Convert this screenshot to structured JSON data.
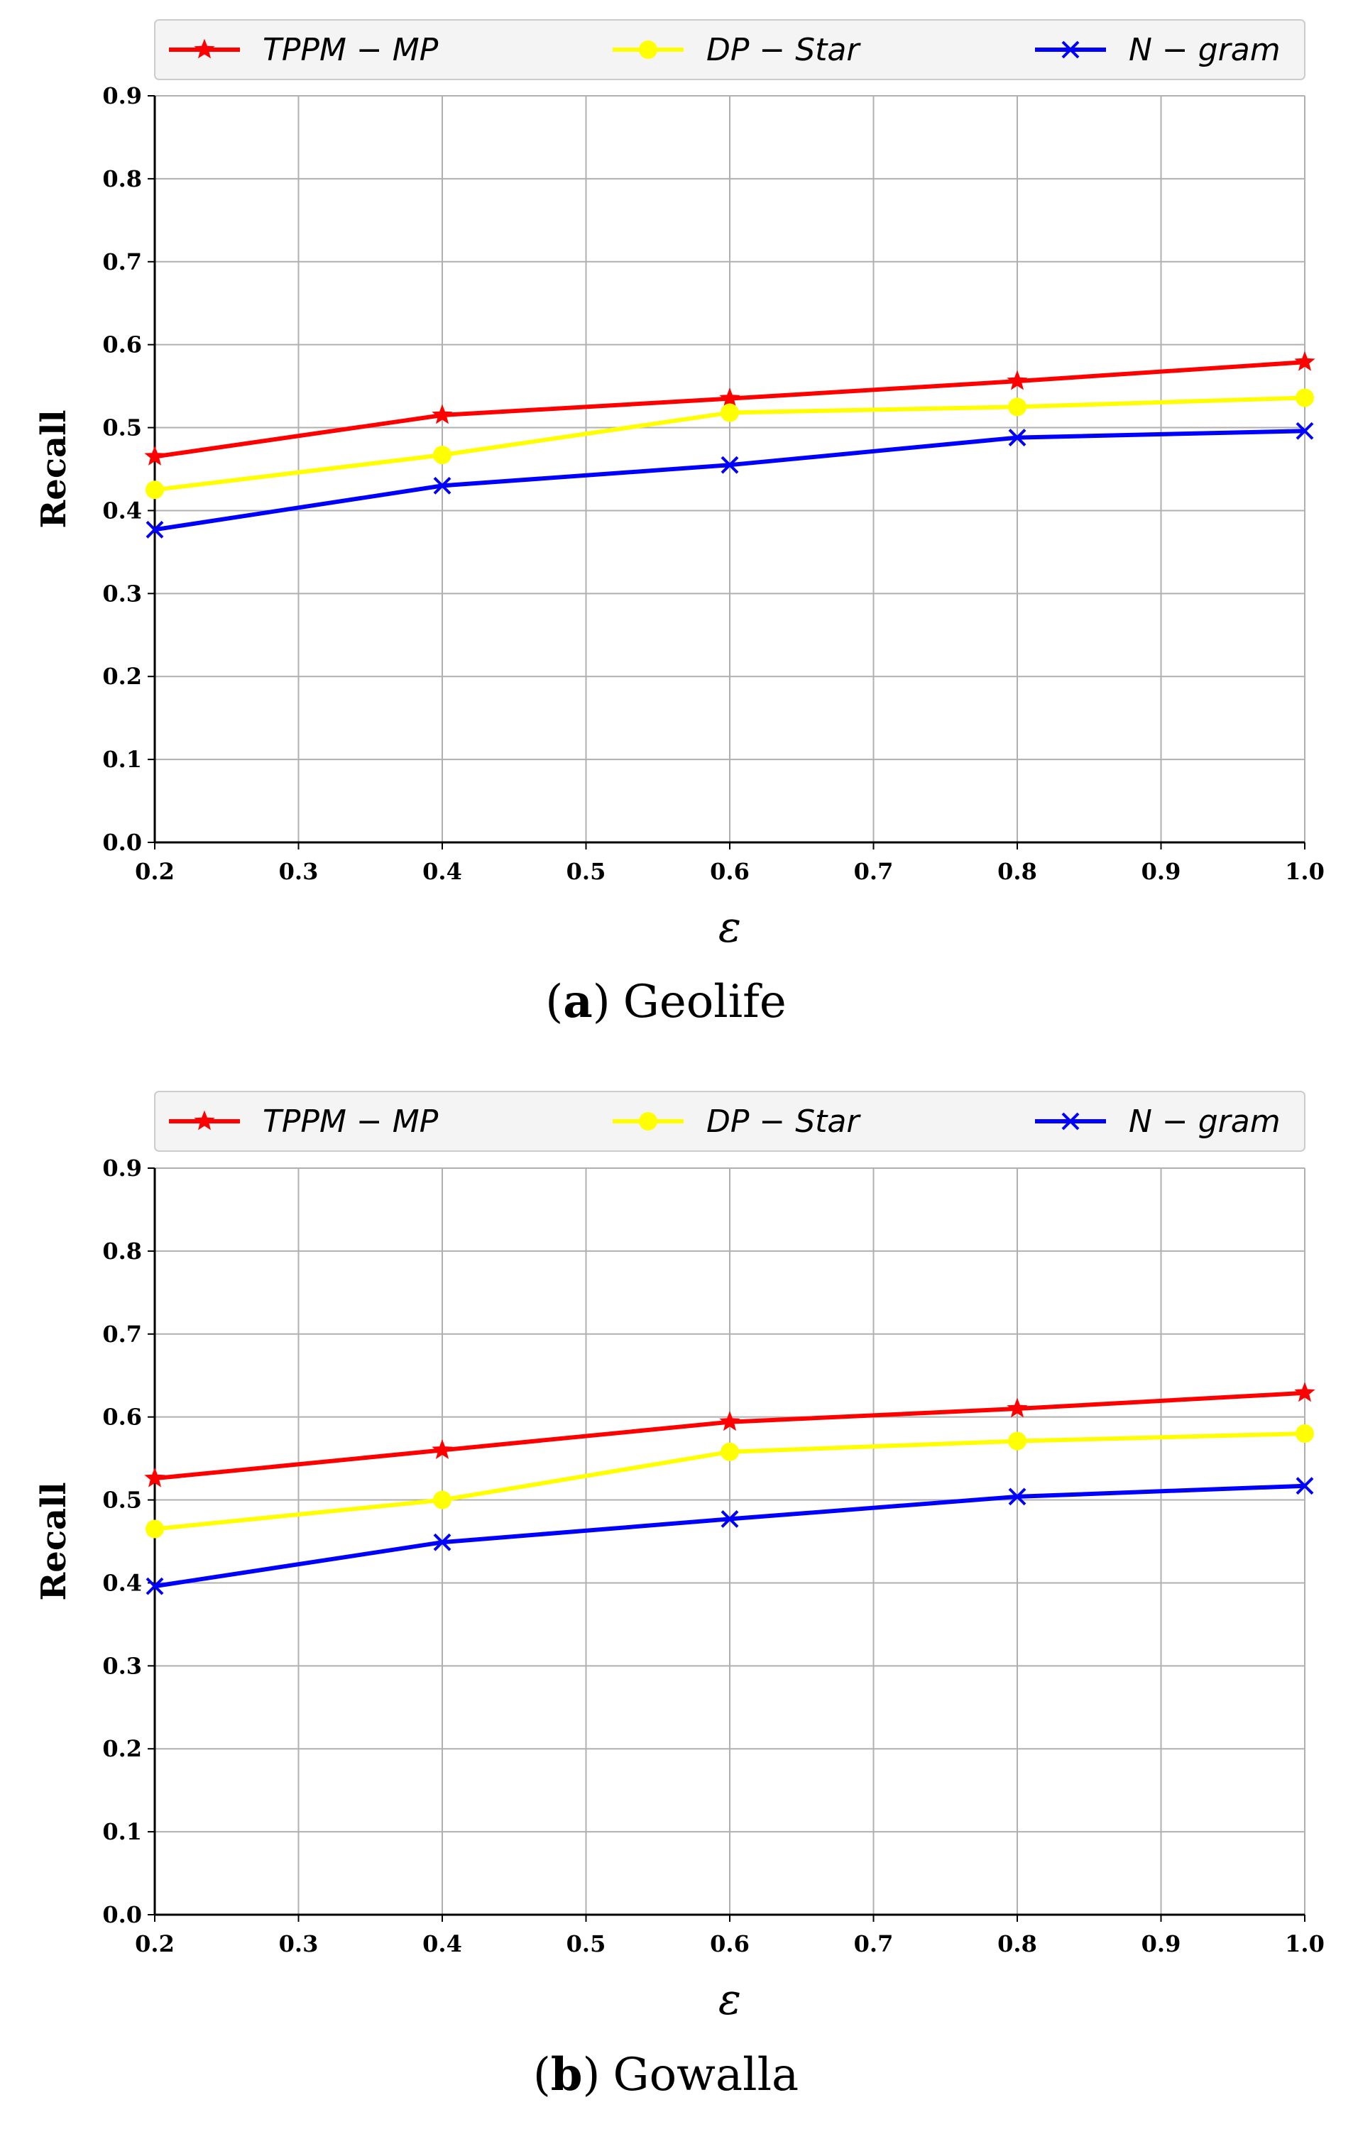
{
  "chart_data": [
    {
      "type": "line",
      "caption_paren_open": "(",
      "caption_letter": "a",
      "caption_paren_close": ")",
      "caption_name": "Geolife",
      "xlabel": "ε",
      "ylabel": "Recall",
      "xlim": [
        0.2,
        1.0
      ],
      "ylim": [
        0.0,
        0.9
      ],
      "xticks": [
        "0.2",
        "0.3",
        "0.4",
        "0.5",
        "0.6",
        "0.7",
        "0.8",
        "0.9",
        "1.0"
      ],
      "yticks": [
        "0.0",
        "0.1",
        "0.2",
        "0.3",
        "0.4",
        "0.5",
        "0.6",
        "0.7",
        "0.8",
        "0.9"
      ],
      "grid": true,
      "legend_position": "top",
      "x": [
        0.2,
        0.4,
        0.6,
        0.8,
        1.0
      ],
      "series": [
        {
          "name": "TPPM − MP",
          "color": "#ff0000",
          "marker": "star",
          "values": [
            0.465,
            0.515,
            0.535,
            0.556,
            0.579
          ]
        },
        {
          "name": "DP − Star",
          "color": "#ffff00",
          "marker": "circle",
          "values": [
            0.425,
            0.467,
            0.518,
            0.525,
            0.536
          ]
        },
        {
          "name": "N − gram",
          "color": "#0000ff",
          "marker": "x",
          "values": [
            0.377,
            0.43,
            0.455,
            0.488,
            0.496
          ]
        }
      ]
    },
    {
      "type": "line",
      "caption_paren_open": "(",
      "caption_letter": "b",
      "caption_paren_close": ")",
      "caption_name": "Gowalla",
      "xlabel": "ε",
      "ylabel": "Recall",
      "xlim": [
        0.2,
        1.0
      ],
      "ylim": [
        0.0,
        0.9
      ],
      "xticks": [
        "0.2",
        "0.3",
        "0.4",
        "0.5",
        "0.6",
        "0.7",
        "0.8",
        "0.9",
        "1.0"
      ],
      "yticks": [
        "0.0",
        "0.1",
        "0.2",
        "0.3",
        "0.4",
        "0.5",
        "0.6",
        "0.7",
        "0.8",
        "0.9"
      ],
      "grid": true,
      "legend_position": "top",
      "x": [
        0.2,
        0.4,
        0.6,
        0.8,
        1.0
      ],
      "series": [
        {
          "name": "TPPM − MP",
          "color": "#ff0000",
          "marker": "star",
          "values": [
            0.526,
            0.56,
            0.594,
            0.61,
            0.629
          ]
        },
        {
          "name": "DP − Star",
          "color": "#ffff00",
          "marker": "circle",
          "values": [
            0.465,
            0.5,
            0.558,
            0.571,
            0.58
          ]
        },
        {
          "name": "N − gram",
          "color": "#0000ff",
          "marker": "x",
          "values": [
            0.396,
            0.449,
            0.477,
            0.504,
            0.517
          ]
        }
      ]
    }
  ]
}
